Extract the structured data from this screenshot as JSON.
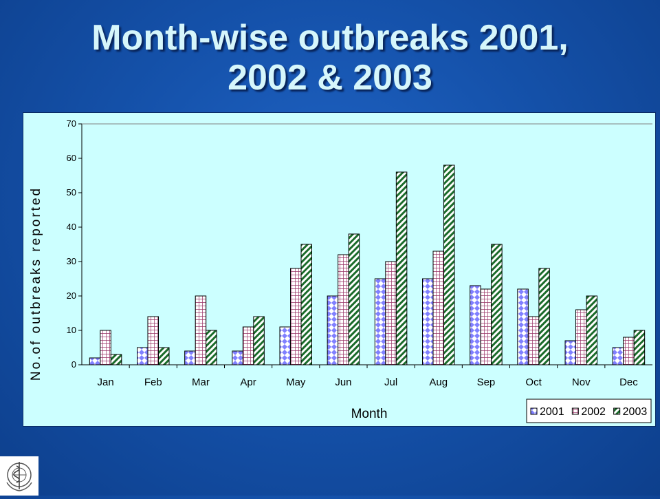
{
  "slide": {
    "title_line1": "Month-wise outbreaks 2001,",
    "title_line2": "2002 & 2003"
  },
  "colors": {
    "background": "#1552ab",
    "title": "#d6f6fb",
    "plot_background": "#ccffff",
    "series_2001": "#6666ff",
    "series_2002": "#993366",
    "series_2003": "#1a6b2a"
  },
  "chart_data": {
    "type": "bar",
    "xlabel": "Month",
    "ylabel": "No.of outbreaks reported",
    "ylim": [
      0,
      70
    ],
    "yticks": [
      0,
      10,
      20,
      30,
      40,
      50,
      60,
      70
    ],
    "grid": false,
    "legend_position": "bottom-right",
    "categories": [
      "Jan",
      "Feb",
      "Mar",
      "Apr",
      "May",
      "Jun",
      "Jul",
      "Aug",
      "Sep",
      "Oct",
      "Nov",
      "Dec"
    ],
    "series": [
      {
        "name": "2001",
        "pattern": "diamond",
        "values": [
          2,
          5,
          4,
          4,
          11,
          20,
          25,
          25,
          23,
          22,
          7,
          5
        ]
      },
      {
        "name": "2002",
        "pattern": "grid",
        "values": [
          10,
          14,
          20,
          11,
          28,
          32,
          30,
          33,
          22,
          14,
          16,
          8
        ]
      },
      {
        "name": "2003",
        "pattern": "diagonal",
        "values": [
          3,
          5,
          10,
          14,
          35,
          38,
          56,
          58,
          35,
          28,
          20,
          10
        ]
      }
    ]
  },
  "logo": {
    "icon": "who-emblem-icon"
  }
}
